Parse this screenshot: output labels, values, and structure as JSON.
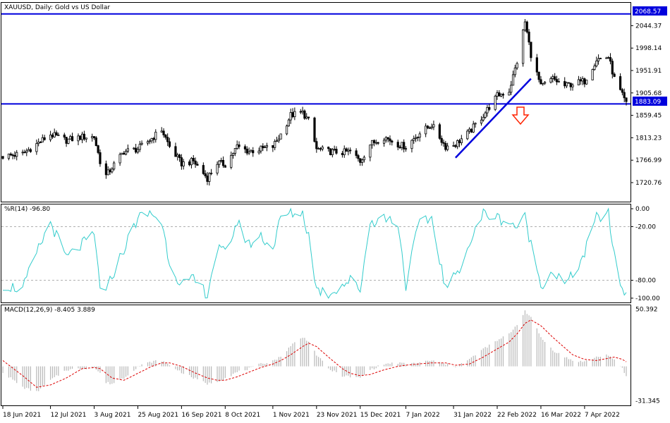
{
  "chart_data": [
    {
      "panel": "price",
      "type": "candlestick",
      "title": "XAUUSD, Daily:  Gold vs US Dollar",
      "ylim": [
        1683,
        2090
      ],
      "y_ticks": [
        "2044.37",
        "1998.14",
        "1951.91",
        "1905.68",
        "1859.45",
        "1813.23",
        "1766.99",
        "1720.76"
      ],
      "y_tick_values": [
        2044.37,
        1998.14,
        1951.91,
        1905.68,
        1859.45,
        1813.23,
        1766.99,
        1720.76
      ],
      "horizontal_lines": [
        {
          "value": 2068.57,
          "label": "2068.57"
        },
        {
          "value": 1883.09,
          "label": "1883.09"
        }
      ],
      "trendline": {
        "from": {
          "x": "2022-02-01",
          "y": 1772
        },
        "to": {
          "x": "2022-03-11",
          "y": 1935
        }
      },
      "annotation": "down-arrow",
      "colors": {
        "line": "#0000dd",
        "arrow": "#ff2200",
        "candle": "#000000"
      },
      "x_ticks": [
        "18 Jun 2021",
        "12 Jul 2021",
        "3 Aug 2021",
        "25 Aug 2021",
        "16 Sep 2021",
        "8 Oct 2021",
        "1 Nov 2021",
        "23 Nov 2021",
        "15 Dec 2021",
        "7 Jan 2022",
        "31 Jan 2022",
        "22 Feb 2022",
        "16 Mar 2022",
        "7 Apr 2022"
      ],
      "close_series": [
        {
          "x": "2021-06-18",
          "y": 1775
        },
        {
          "x": "2021-06-28",
          "y": 1780
        },
        {
          "x": "2021-07-05",
          "y": 1800
        },
        {
          "x": "2021-07-12",
          "y": 1820
        },
        {
          "x": "2021-07-20",
          "y": 1808
        },
        {
          "x": "2021-07-28",
          "y": 1815
        },
        {
          "x": "2021-08-03",
          "y": 1815
        },
        {
          "x": "2021-08-06",
          "y": 1765
        },
        {
          "x": "2021-08-09",
          "y": 1735
        },
        {
          "x": "2021-08-12",
          "y": 1752
        },
        {
          "x": "2021-08-18",
          "y": 1785
        },
        {
          "x": "2021-08-25",
          "y": 1790
        },
        {
          "x": "2021-09-01",
          "y": 1812
        },
        {
          "x": "2021-09-06",
          "y": 1830
        },
        {
          "x": "2021-09-10",
          "y": 1795
        },
        {
          "x": "2021-09-16",
          "y": 1760
        },
        {
          "x": "2021-09-22",
          "y": 1765
        },
        {
          "x": "2021-09-29",
          "y": 1730
        },
        {
          "x": "2021-10-04",
          "y": 1762
        },
        {
          "x": "2021-10-08",
          "y": 1758
        },
        {
          "x": "2021-10-14",
          "y": 1795
        },
        {
          "x": "2021-10-20",
          "y": 1785
        },
        {
          "x": "2021-10-26",
          "y": 1790
        },
        {
          "x": "2021-11-01",
          "y": 1795
        },
        {
          "x": "2021-11-05",
          "y": 1820
        },
        {
          "x": "2021-11-10",
          "y": 1860
        },
        {
          "x": "2021-11-16",
          "y": 1865
        },
        {
          "x": "2021-11-19",
          "y": 1848
        },
        {
          "x": "2021-11-23",
          "y": 1790
        },
        {
          "x": "2021-11-29",
          "y": 1785
        },
        {
          "x": "2021-12-06",
          "y": 1783
        },
        {
          "x": "2021-12-10",
          "y": 1785
        },
        {
          "x": "2021-12-15",
          "y": 1765
        },
        {
          "x": "2021-12-20",
          "y": 1800
        },
        {
          "x": "2021-12-27",
          "y": 1815
        },
        {
          "x": "2022-01-03",
          "y": 1800
        },
        {
          "x": "2022-01-07",
          "y": 1795
        },
        {
          "x": "2022-01-13",
          "y": 1820
        },
        {
          "x": "2022-01-20",
          "y": 1840
        },
        {
          "x": "2022-01-27",
          "y": 1795
        },
        {
          "x": "2022-02-01",
          "y": 1800
        },
        {
          "x": "2022-02-08",
          "y": 1825
        },
        {
          "x": "2022-02-15",
          "y": 1860
        },
        {
          "x": "2022-02-22",
          "y": 1900
        },
        {
          "x": "2022-02-28",
          "y": 1910
        },
        {
          "x": "2022-03-04",
          "y": 1970
        },
        {
          "x": "2022-03-08",
          "y": 2052
        },
        {
          "x": "2022-03-11",
          "y": 1985
        },
        {
          "x": "2022-03-16",
          "y": 1918
        },
        {
          "x": "2022-03-22",
          "y": 1935
        },
        {
          "x": "2022-03-28",
          "y": 1920
        },
        {
          "x": "2022-04-01",
          "y": 1925
        },
        {
          "x": "2022-04-07",
          "y": 1930
        },
        {
          "x": "2022-04-13",
          "y": 1975
        },
        {
          "x": "2022-04-19",
          "y": 1980
        },
        {
          "x": "2022-04-22",
          "y": 1935
        },
        {
          "x": "2022-04-26",
          "y": 1900
        },
        {
          "x": "2022-04-28",
          "y": 1883
        }
      ]
    },
    {
      "panel": "williams_r",
      "type": "line",
      "title": "%R(14) -96.80",
      "ylim": [
        -104,
        4
      ],
      "y_ticks": [
        "0.00",
        "-20.00",
        "-80.00",
        "-100.00"
      ],
      "y_tick_values": [
        0,
        -20,
        -80,
        -100
      ],
      "levels": [
        -20,
        -80
      ],
      "colors": {
        "line": "#33cccc"
      },
      "series": [
        {
          "x": "2021-06-18",
          "y": -85
        },
        {
          "x": "2021-06-28",
          "y": -90
        },
        {
          "x": "2021-07-05",
          "y": -50
        },
        {
          "x": "2021-07-12",
          "y": -15
        },
        {
          "x": "2021-07-20",
          "y": -55
        },
        {
          "x": "2021-07-28",
          "y": -40
        },
        {
          "x": "2021-08-03",
          "y": -30
        },
        {
          "x": "2021-08-06",
          "y": -85
        },
        {
          "x": "2021-08-09",
          "y": -95
        },
        {
          "x": "2021-08-12",
          "y": -75
        },
        {
          "x": "2021-08-18",
          "y": -45
        },
        {
          "x": "2021-08-25",
          "y": -10
        },
        {
          "x": "2021-09-01",
          "y": -5
        },
        {
          "x": "2021-09-06",
          "y": -15
        },
        {
          "x": "2021-09-10",
          "y": -60
        },
        {
          "x": "2021-09-16",
          "y": -85
        },
        {
          "x": "2021-09-22",
          "y": -80
        },
        {
          "x": "2021-09-29",
          "y": -95
        },
        {
          "x": "2021-10-04",
          "y": -45
        },
        {
          "x": "2021-10-08",
          "y": -50
        },
        {
          "x": "2021-10-14",
          "y": -15
        },
        {
          "x": "2021-10-20",
          "y": -40
        },
        {
          "x": "2021-10-26",
          "y": -30
        },
        {
          "x": "2021-11-01",
          "y": -45
        },
        {
          "x": "2021-11-05",
          "y": -10
        },
        {
          "x": "2021-11-10",
          "y": -5
        },
        {
          "x": "2021-11-16",
          "y": -5
        },
        {
          "x": "2021-11-19",
          "y": -30
        },
        {
          "x": "2021-11-23",
          "y": -90
        },
        {
          "x": "2021-11-29",
          "y": -95
        },
        {
          "x": "2021-12-06",
          "y": -85
        },
        {
          "x": "2021-12-10",
          "y": -80
        },
        {
          "x": "2021-12-15",
          "y": -90
        },
        {
          "x": "2021-12-20",
          "y": -15
        },
        {
          "x": "2021-12-27",
          "y": -10
        },
        {
          "x": "2022-01-03",
          "y": -15
        },
        {
          "x": "2022-01-07",
          "y": -85
        },
        {
          "x": "2022-01-13",
          "y": -20
        },
        {
          "x": "2022-01-20",
          "y": -10
        },
        {
          "x": "2022-01-27",
          "y": -90
        },
        {
          "x": "2022-02-01",
          "y": -75
        },
        {
          "x": "2022-02-08",
          "y": -40
        },
        {
          "x": "2022-02-15",
          "y": -5
        },
        {
          "x": "2022-02-22",
          "y": -10
        },
        {
          "x": "2022-02-28",
          "y": -15
        },
        {
          "x": "2022-03-04",
          "y": -20
        },
        {
          "x": "2022-03-08",
          "y": -10
        },
        {
          "x": "2022-03-11",
          "y": -40
        },
        {
          "x": "2022-03-16",
          "y": -85
        },
        {
          "x": "2022-03-22",
          "y": -70
        },
        {
          "x": "2022-03-28",
          "y": -85
        },
        {
          "x": "2022-04-01",
          "y": -75
        },
        {
          "x": "2022-04-07",
          "y": -50
        },
        {
          "x": "2022-04-13",
          "y": -10
        },
        {
          "x": "2022-04-19",
          "y": -5
        },
        {
          "x": "2022-04-22",
          "y": -55
        },
        {
          "x": "2022-04-26",
          "y": -90
        },
        {
          "x": "2022-04-28",
          "y": -96.8
        }
      ]
    },
    {
      "panel": "macd",
      "type": "bar+line",
      "title": "MACD(12,26,9) -8.405 3.889",
      "ylim": [
        -33,
        52
      ],
      "y_ticks": [
        "50.392",
        "-31.345"
      ],
      "y_tick_values": [
        50.392,
        -31.345
      ],
      "colors": {
        "histogram": "#b8b8b8",
        "signal": "#dd0000"
      },
      "macd_histogram": [
        {
          "x": "2021-06-18",
          "y": -5
        },
        {
          "x": "2021-06-28",
          "y": -18
        },
        {
          "x": "2021-07-05",
          "y": -22
        },
        {
          "x": "2021-07-12",
          "y": -12
        },
        {
          "x": "2021-07-20",
          "y": -3
        },
        {
          "x": "2021-07-28",
          "y": -2
        },
        {
          "x": "2021-08-03",
          "y": -1
        },
        {
          "x": "2021-08-06",
          "y": -6
        },
        {
          "x": "2021-08-09",
          "y": -14
        },
        {
          "x": "2021-08-12",
          "y": -15
        },
        {
          "x": "2021-08-18",
          "y": -10
        },
        {
          "x": "2021-08-25",
          "y": 0
        },
        {
          "x": "2021-09-01",
          "y": 4
        },
        {
          "x": "2021-09-06",
          "y": 5
        },
        {
          "x": "2021-09-10",
          "y": 1
        },
        {
          "x": "2021-09-16",
          "y": -5
        },
        {
          "x": "2021-09-22",
          "y": -10
        },
        {
          "x": "2021-09-29",
          "y": -15
        },
        {
          "x": "2021-10-04",
          "y": -13
        },
        {
          "x": "2021-10-08",
          "y": -10
        },
        {
          "x": "2021-10-14",
          "y": -5
        },
        {
          "x": "2021-10-20",
          "y": -2
        },
        {
          "x": "2021-10-26",
          "y": 2
        },
        {
          "x": "2021-11-01",
          "y": 5
        },
        {
          "x": "2021-11-05",
          "y": 8
        },
        {
          "x": "2021-11-10",
          "y": 18
        },
        {
          "x": "2021-11-16",
          "y": 25
        },
        {
          "x": "2021-11-19",
          "y": 22
        },
        {
          "x": "2021-11-23",
          "y": 10
        },
        {
          "x": "2021-11-29",
          "y": -2
        },
        {
          "x": "2021-12-06",
          "y": -8
        },
        {
          "x": "2021-12-10",
          "y": -9
        },
        {
          "x": "2021-12-15",
          "y": -10
        },
        {
          "x": "2021-12-20",
          "y": -3
        },
        {
          "x": "2021-12-27",
          "y": 2
        },
        {
          "x": "2022-01-03",
          "y": 3
        },
        {
          "x": "2022-01-07",
          "y": 2
        },
        {
          "x": "2022-01-13",
          "y": 3
        },
        {
          "x": "2022-01-20",
          "y": 5
        },
        {
          "x": "2022-01-27",
          "y": 2
        },
        {
          "x": "2022-02-01",
          "y": 0
        },
        {
          "x": "2022-02-08",
          "y": 6
        },
        {
          "x": "2022-02-15",
          "y": 15
        },
        {
          "x": "2022-02-22",
          "y": 22
        },
        {
          "x": "2022-02-28",
          "y": 28
        },
        {
          "x": "2022-03-04",
          "y": 36
        },
        {
          "x": "2022-03-08",
          "y": 48
        },
        {
          "x": "2022-03-11",
          "y": 42
        },
        {
          "x": "2022-03-16",
          "y": 25
        },
        {
          "x": "2022-03-22",
          "y": 14
        },
        {
          "x": "2022-03-28",
          "y": 8
        },
        {
          "x": "2022-04-01",
          "y": 5
        },
        {
          "x": "2022-04-07",
          "y": 4
        },
        {
          "x": "2022-04-13",
          "y": 8
        },
        {
          "x": "2022-04-19",
          "y": 10
        },
        {
          "x": "2022-04-22",
          "y": 5
        },
        {
          "x": "2022-04-26",
          "y": -2
        },
        {
          "x": "2022-04-28",
          "y": -8.405
        }
      ],
      "signal": [
        {
          "x": "2021-06-18",
          "y": 5
        },
        {
          "x": "2021-06-28",
          "y": -8
        },
        {
          "x": "2021-07-05",
          "y": -18
        },
        {
          "x": "2021-07-12",
          "y": -16
        },
        {
          "x": "2021-07-20",
          "y": -10
        },
        {
          "x": "2021-07-28",
          "y": -2
        },
        {
          "x": "2021-08-03",
          "y": -1
        },
        {
          "x": "2021-08-06",
          "y": -2
        },
        {
          "x": "2021-08-09",
          "y": -6
        },
        {
          "x": "2021-08-12",
          "y": -10
        },
        {
          "x": "2021-08-18",
          "y": -12
        },
        {
          "x": "2021-08-25",
          "y": -6
        },
        {
          "x": "2021-09-01",
          "y": 0
        },
        {
          "x": "2021-09-06",
          "y": 3
        },
        {
          "x": "2021-09-10",
          "y": 3
        },
        {
          "x": "2021-09-16",
          "y": 0
        },
        {
          "x": "2021-09-22",
          "y": -5
        },
        {
          "x": "2021-09-29",
          "y": -10
        },
        {
          "x": "2021-10-04",
          "y": -12
        },
        {
          "x": "2021-10-08",
          "y": -12
        },
        {
          "x": "2021-10-14",
          "y": -9
        },
        {
          "x": "2021-10-20",
          "y": -5
        },
        {
          "x": "2021-10-26",
          "y": -1
        },
        {
          "x": "2021-11-01",
          "y": 2
        },
        {
          "x": "2021-11-05",
          "y": 5
        },
        {
          "x": "2021-11-10",
          "y": 10
        },
        {
          "x": "2021-11-16",
          "y": 17
        },
        {
          "x": "2021-11-19",
          "y": 20
        },
        {
          "x": "2021-11-23",
          "y": 17
        },
        {
          "x": "2021-11-29",
          "y": 8
        },
        {
          "x": "2021-12-06",
          "y": -2
        },
        {
          "x": "2021-12-10",
          "y": -6
        },
        {
          "x": "2021-12-15",
          "y": -8
        },
        {
          "x": "2021-12-20",
          "y": -7
        },
        {
          "x": "2021-12-27",
          "y": -3
        },
        {
          "x": "2022-01-03",
          "y": 0
        },
        {
          "x": "2022-01-07",
          "y": 1
        },
        {
          "x": "2022-01-13",
          "y": 2
        },
        {
          "x": "2022-01-20",
          "y": 3
        },
        {
          "x": "2022-01-27",
          "y": 3
        },
        {
          "x": "2022-02-01",
          "y": 1
        },
        {
          "x": "2022-02-08",
          "y": 2
        },
        {
          "x": "2022-02-15",
          "y": 8
        },
        {
          "x": "2022-02-22",
          "y": 15
        },
        {
          "x": "2022-02-28",
          "y": 21
        },
        {
          "x": "2022-03-04",
          "y": 28
        },
        {
          "x": "2022-03-08",
          "y": 37
        },
        {
          "x": "2022-03-11",
          "y": 40
        },
        {
          "x": "2022-03-16",
          "y": 35
        },
        {
          "x": "2022-03-22",
          "y": 25
        },
        {
          "x": "2022-03-28",
          "y": 16
        },
        {
          "x": "2022-04-01",
          "y": 10
        },
        {
          "x": "2022-04-07",
          "y": 6
        },
        {
          "x": "2022-04-13",
          "y": 5
        },
        {
          "x": "2022-04-19",
          "y": 7
        },
        {
          "x": "2022-04-22",
          "y": 8
        },
        {
          "x": "2022-04-26",
          "y": 6
        },
        {
          "x": "2022-04-28",
          "y": 3.889
        }
      ]
    }
  ]
}
